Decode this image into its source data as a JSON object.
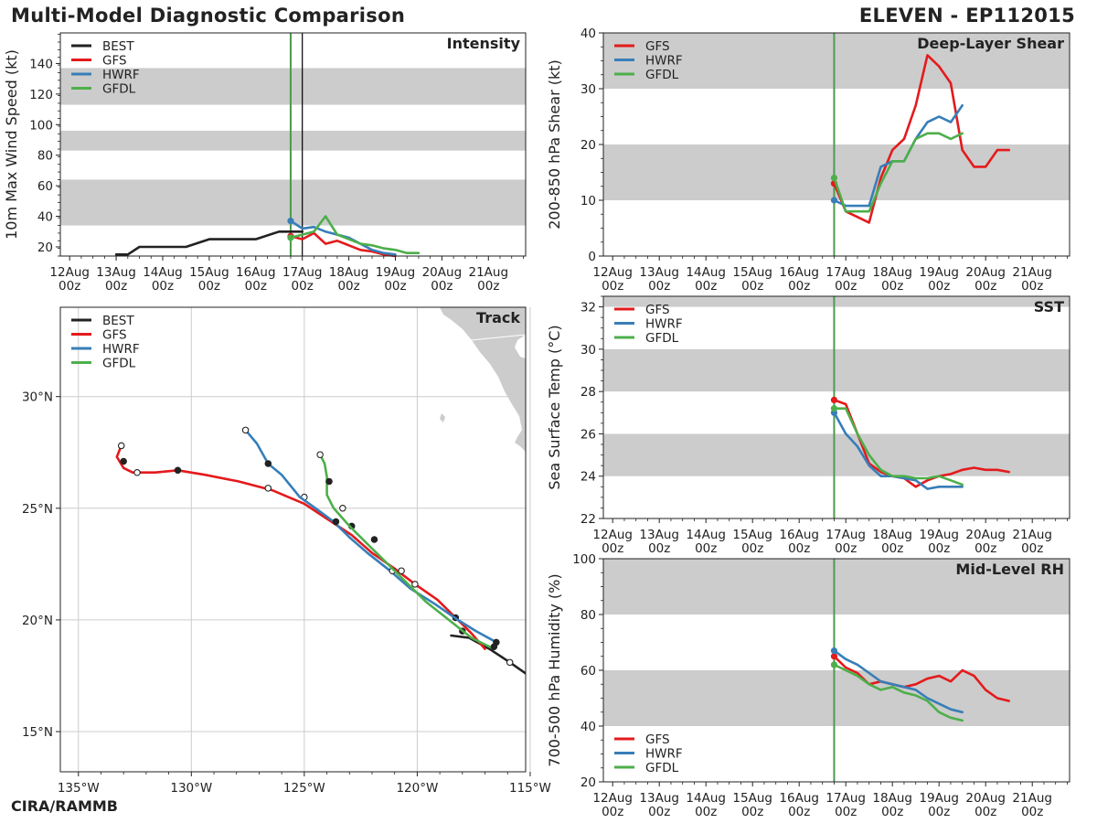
{
  "header": {
    "title": "Multi-Model Diagnostic Comparison",
    "storm": "ELEVEN - EP112015"
  },
  "footer": {
    "credit": "CIRA/RAMMB"
  },
  "colors": {
    "BEST": "#222222",
    "GFS": "#e41a1c",
    "HWRF": "#377eb8",
    "GFDL": "#4daf4a",
    "band": "#cccccc",
    "init_line": "#4e9a4e"
  },
  "chart_data": [
    {
      "id": "intensity",
      "type": "line",
      "title": "Intensity",
      "ylabel": "10m Max Wind Speed (kt)",
      "xlim": [
        -0.2,
        9.8
      ],
      "ylim": [
        14,
        160
      ],
      "xticks": [
        0,
        1,
        2,
        3,
        4,
        5,
        6,
        7,
        8,
        9
      ],
      "xticklabels": [
        "12Aug\n00z",
        "13Aug\n00z",
        "14Aug\n00z",
        "15Aug\n00z",
        "16Aug\n00z",
        "17Aug\n00z",
        "18Aug\n00z",
        "19Aug\n00z",
        "20Aug\n00z",
        "21Aug\n00z"
      ],
      "yticks": [
        20,
        40,
        60,
        80,
        100,
        120,
        140
      ],
      "bands": [
        [
          34,
          64
        ],
        [
          83,
          96
        ],
        [
          113,
          137
        ]
      ],
      "vlines": [
        {
          "x": 4.75,
          "color": "init"
        },
        {
          "x": 5.0,
          "color": "black"
        }
      ],
      "legend": [
        "BEST",
        "GFS",
        "HWRF",
        "GFDL"
      ],
      "series": [
        {
          "name": "BEST",
          "x": [
            1,
            1.25,
            1.5,
            2,
            2.5,
            3,
            3.5,
            4,
            4.5,
            5
          ],
          "y": [
            15,
            15,
            20,
            20,
            20,
            25,
            25,
            25,
            30,
            30
          ]
        },
        {
          "name": "GFS",
          "x": [
            4.75,
            5,
            5.25,
            5.5,
            5.75,
            6,
            6.25,
            6.5,
            6.75,
            7
          ],
          "y": [
            27,
            25,
            29,
            22,
            24,
            21,
            18,
            17,
            15,
            14
          ]
        },
        {
          "name": "HWRF",
          "x": [
            4.75,
            5,
            5.25,
            5.5,
            5.75,
            6,
            6.25,
            6.5,
            6.75,
            7
          ],
          "y": [
            37,
            32,
            33,
            30,
            28,
            26,
            22,
            18,
            16,
            15
          ]
        },
        {
          "name": "GFDL",
          "x": [
            4.75,
            5,
            5.25,
            5.5,
            5.75,
            6,
            6.25,
            6.5,
            6.75,
            7,
            7.25,
            7.5
          ],
          "y": [
            26,
            28,
            30,
            40,
            28,
            25,
            22,
            21,
            19,
            18,
            16,
            16
          ]
        }
      ]
    },
    {
      "id": "shear",
      "type": "line",
      "title": "Deep-Layer Shear",
      "ylabel": "200-850 hPa Shear (kt)",
      "xlim": [
        -0.2,
        9.8
      ],
      "ylim": [
        0,
        40
      ],
      "xticks": [
        0,
        1,
        2,
        3,
        4,
        5,
        6,
        7,
        8,
        9
      ],
      "xticklabels": [
        "12Aug\n00z",
        "13Aug\n00z",
        "14Aug\n00z",
        "15Aug\n00z",
        "16Aug\n00z",
        "17Aug\n00z",
        "18Aug\n00z",
        "19Aug\n00z",
        "20Aug\n00z",
        "21Aug\n00z"
      ],
      "yticks": [
        0,
        10,
        20,
        30,
        40
      ],
      "bands": [
        [
          10,
          20
        ],
        [
          30,
          40
        ]
      ],
      "vlines": [
        {
          "x": 4.75,
          "color": "init"
        }
      ],
      "legend": [
        "GFS",
        "HWRF",
        "GFDL"
      ],
      "series": [
        {
          "name": "GFS",
          "x": [
            4.75,
            5,
            5.25,
            5.5,
            5.75,
            6,
            6.25,
            6.5,
            6.75,
            7,
            7.25,
            7.5,
            7.75,
            8,
            8.25,
            8.5
          ],
          "y": [
            13,
            8,
            7,
            6,
            14,
            19,
            21,
            27,
            36,
            34,
            31,
            19,
            16,
            16,
            19,
            19
          ]
        },
        {
          "name": "HWRF",
          "x": [
            4.75,
            5,
            5.25,
            5.5,
            5.75,
            6,
            6.25,
            6.5,
            6.75,
            7,
            7.25,
            7.5
          ],
          "y": [
            10,
            9,
            9,
            9,
            16,
            17,
            17,
            21,
            24,
            25,
            24,
            27
          ]
        },
        {
          "name": "GFDL",
          "x": [
            4.75,
            5,
            5.25,
            5.5,
            5.75,
            6,
            6.25,
            6.5,
            6.75,
            7,
            7.25,
            7.5
          ],
          "y": [
            14,
            8,
            8,
            8,
            13,
            17,
            17,
            21,
            22,
            22,
            21,
            22
          ]
        }
      ]
    },
    {
      "id": "sst",
      "type": "line",
      "title": "SST",
      "ylabel": "Sea Surface Temp (°C)",
      "xlim": [
        -0.2,
        9.8
      ],
      "ylim": [
        22,
        32.5
      ],
      "xticks": [
        0,
        1,
        2,
        3,
        4,
        5,
        6,
        7,
        8,
        9
      ],
      "xticklabels": [
        "12Aug\n00z",
        "13Aug\n00z",
        "14Aug\n00z",
        "15Aug\n00z",
        "16Aug\n00z",
        "17Aug\n00z",
        "18Aug\n00z",
        "19Aug\n00z",
        "20Aug\n00z",
        "21Aug\n00z"
      ],
      "yticks": [
        22,
        24,
        26,
        28,
        30,
        32
      ],
      "bands": [
        [
          24,
          26
        ],
        [
          28,
          30
        ],
        [
          32,
          32.5
        ]
      ],
      "vlines": [
        {
          "x": 4.75,
          "color": "init"
        }
      ],
      "legend": [
        "GFS",
        "HWRF",
        "GFDL"
      ],
      "series": [
        {
          "name": "GFS",
          "x": [
            4.75,
            5,
            5.25,
            5.5,
            5.75,
            6,
            6.25,
            6.5,
            6.75,
            7,
            7.25,
            7.5,
            7.75,
            8,
            8.25,
            8.5
          ],
          "y": [
            27.6,
            27.4,
            26,
            24.6,
            24.2,
            24,
            23.9,
            23.5,
            23.8,
            24,
            24.1,
            24.3,
            24.4,
            24.3,
            24.3,
            24.2
          ]
        },
        {
          "name": "HWRF",
          "x": [
            4.75,
            5,
            5.25,
            5.5,
            5.75,
            6,
            6.25,
            6.5,
            6.75,
            7,
            7.25,
            7.5
          ],
          "y": [
            27,
            26,
            25.4,
            24.5,
            24,
            24,
            23.9,
            23.8,
            23.4,
            23.5,
            23.5,
            23.5
          ]
        },
        {
          "name": "GFDL",
          "x": [
            4.75,
            5,
            5.25,
            5.5,
            5.75,
            6,
            6.25,
            6.5,
            6.75,
            7,
            7.25,
            7.5
          ],
          "y": [
            27.2,
            27.2,
            26,
            25,
            24.3,
            24,
            24,
            23.9,
            23.9,
            24,
            23.8,
            23.6
          ]
        }
      ]
    },
    {
      "id": "rh",
      "type": "line",
      "title": "Mid-Level RH",
      "ylabel": "700-500 hPa Humidity (%)",
      "xlim": [
        -0.2,
        9.8
      ],
      "ylim": [
        20,
        100
      ],
      "xticks": [
        0,
        1,
        2,
        3,
        4,
        5,
        6,
        7,
        8,
        9
      ],
      "xticklabels": [
        "12Aug\n00z",
        "13Aug\n00z",
        "14Aug\n00z",
        "15Aug\n00z",
        "16Aug\n00z",
        "17Aug\n00z",
        "18Aug\n00z",
        "19Aug\n00z",
        "20Aug\n00z",
        "21Aug\n00z"
      ],
      "yticks": [
        20,
        40,
        60,
        80,
        100
      ],
      "bands": [
        [
          40,
          60
        ],
        [
          80,
          100
        ]
      ],
      "vlines": [
        {
          "x": 4.75,
          "color": "init"
        }
      ],
      "legend": [
        "GFS",
        "HWRF",
        "GFDL"
      ],
      "series": [
        {
          "name": "GFS",
          "x": [
            4.75,
            5,
            5.25,
            5.5,
            5.75,
            6,
            6.25,
            6.5,
            6.75,
            7,
            7.25,
            7.5,
            7.75,
            8,
            8.25,
            8.5
          ],
          "y": [
            65,
            61,
            59,
            55,
            56,
            55,
            54,
            55,
            57,
            58,
            56,
            60,
            58,
            53,
            50,
            49
          ]
        },
        {
          "name": "HWRF",
          "x": [
            4.75,
            5,
            5.25,
            5.5,
            5.75,
            6,
            6.25,
            6.5,
            6.75,
            7,
            7.25,
            7.5
          ],
          "y": [
            67,
            64,
            62,
            59,
            56,
            55,
            54,
            53,
            50,
            48,
            46,
            45
          ]
        },
        {
          "name": "GFDL",
          "x": [
            4.75,
            5,
            5.25,
            5.5,
            5.75,
            6,
            6.25,
            6.5,
            6.75,
            7,
            7.25,
            7.5
          ],
          "y": [
            62,
            60,
            58,
            55,
            53,
            54,
            52,
            51,
            49,
            45,
            43,
            42
          ]
        }
      ]
    },
    {
      "id": "track",
      "type": "line",
      "title": "Track",
      "xlim": [
        -135.8,
        -115.2
      ],
      "ylim": [
        13.2,
        34
      ],
      "xticks": [
        -135,
        -130,
        -125,
        -120,
        -115
      ],
      "xticklabels": [
        "135°W",
        "130°W",
        "125°W",
        "120°W",
        "115°W"
      ],
      "yticks": [
        15,
        20,
        25,
        30
      ],
      "yticklabels": [
        "15°N",
        "20°N",
        "25°N",
        "30°N"
      ],
      "legend": [
        "BEST",
        "GFS",
        "HWRF",
        "GFDL"
      ],
      "series": [
        {
          "name": "BEST",
          "lon": [
            -115.2,
            -115.9,
            -116.8,
            -117.7,
            -118.5
          ],
          "lat": [
            17.6,
            18.1,
            18.7,
            19.2,
            19.3
          ],
          "markers": [
            {
              "lon": -115.9,
              "lat": 18.1,
              "open": true
            }
          ]
        },
        {
          "name": "GFS",
          "lon": [
            -117.0,
            -117.6,
            -118.3,
            -119.1,
            -120.1,
            -121.0,
            -122.0,
            -122.9,
            -123.8,
            -125.0,
            -126.4,
            -127.9,
            -129.4,
            -130.6,
            -131.6,
            -132.6,
            -133.0,
            -133.3,
            -133.1
          ],
          "lat": [
            18.7,
            19.4,
            20.1,
            20.9,
            21.6,
            22.3,
            23.0,
            23.8,
            24.4,
            25.2,
            25.8,
            26.2,
            26.5,
            26.7,
            26.6,
            26.6,
            26.8,
            27.3,
            27.8
          ],
          "markers": [
            {
              "lon": -118.3,
              "lat": 20.1,
              "open": false
            },
            {
              "lon": -120.1,
              "lat": 21.6,
              "open": true
            },
            {
              "lon": -122.9,
              "lat": 24.2,
              "open": false
            },
            {
              "lon": -125.0,
              "lat": 25.5,
              "open": true
            },
            {
              "lon": -126.6,
              "lat": 25.9,
              "open": true
            },
            {
              "lon": -130.6,
              "lat": 26.7,
              "open": false
            },
            {
              "lon": -132.4,
              "lat": 26.6,
              "open": true
            },
            {
              "lon": -133.0,
              "lat": 27.1,
              "open": false
            },
            {
              "lon": -133.1,
              "lat": 27.8,
              "open": true
            }
          ]
        },
        {
          "name": "HWRF",
          "lon": [
            -116.5,
            -117.4,
            -118.2,
            -119.2,
            -120.3,
            -121.2,
            -122.2,
            -123.0,
            -123.7,
            -124.5,
            -125.2,
            -126.0,
            -126.6,
            -127.1,
            -127.6
          ],
          "lat": [
            19.0,
            19.5,
            20.0,
            20.7,
            21.4,
            22.2,
            23.0,
            23.7,
            24.4,
            25.0,
            25.5,
            26.5,
            27.0,
            27.9,
            28.5
          ],
          "markers": [
            {
              "lon": -116.5,
              "lat": 19.0,
              "open": false
            },
            {
              "lon": -118.0,
              "lat": 19.5,
              "open": false
            },
            {
              "lon": -121.1,
              "lat": 22.2,
              "open": true
            },
            {
              "lon": -123.6,
              "lat": 24.4,
              "open": false
            },
            {
              "lon": -126.6,
              "lat": 27.0,
              "open": false
            },
            {
              "lon": -127.6,
              "lat": 28.5,
              "open": true
            }
          ]
        },
        {
          "name": "GFDL",
          "lon": [
            -116.6,
            -117.6,
            -118.6,
            -119.6,
            -120.6,
            -121.4,
            -122.2,
            -123.0,
            -123.7,
            -124.0,
            -124.0,
            -124.1,
            -124.3
          ],
          "lat": [
            18.7,
            19.2,
            20.0,
            20.8,
            21.8,
            22.6,
            23.4,
            24.2,
            25.0,
            25.6,
            26.4,
            27.0,
            27.4
          ],
          "markers": [
            {
              "lon": -116.6,
              "lat": 18.8,
              "open": false
            },
            {
              "lon": -120.7,
              "lat": 22.2,
              "open": true
            },
            {
              "lon": -121.9,
              "lat": 23.6,
              "open": false
            },
            {
              "lon": -123.3,
              "lat": 25.0,
              "open": true
            },
            {
              "lon": -123.9,
              "lat": 26.2,
              "open": false
            },
            {
              "lon": -124.3,
              "lat": 27.4,
              "open": true
            }
          ]
        }
      ]
    }
  ]
}
